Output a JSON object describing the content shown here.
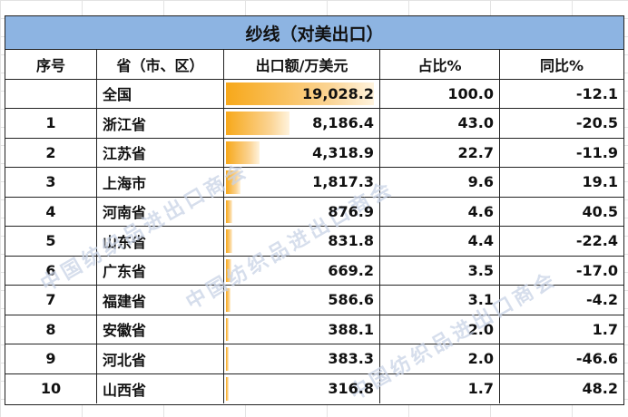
{
  "title": "纱线（对美出口）",
  "headers": {
    "index": "序号",
    "province": "省（市、区）",
    "export": "出口额/万美元",
    "share": "占比%",
    "yoy": "同比%"
  },
  "rows": [
    {
      "index": "",
      "province": "全国",
      "export": "19,028.2",
      "share": "100.0",
      "yoy": "-12.1",
      "bar": 1.0
    },
    {
      "index": "1",
      "province": "浙江省",
      "export": "8,186.4",
      "share": "43.0",
      "yoy": "-20.5",
      "bar": 0.43
    },
    {
      "index": "2",
      "province": "江苏省",
      "export": "4,318.9",
      "share": "22.7",
      "yoy": "-11.9",
      "bar": 0.227
    },
    {
      "index": "3",
      "province": "上海市",
      "export": "1,817.3",
      "share": "9.6",
      "yoy": "19.1",
      "bar": 0.096
    },
    {
      "index": "4",
      "province": "河南省",
      "export": "876.9",
      "share": "4.6",
      "yoy": "40.5",
      "bar": 0.046
    },
    {
      "index": "5",
      "province": "山东省",
      "export": "831.8",
      "share": "4.4",
      "yoy": "-22.4",
      "bar": 0.044
    },
    {
      "index": "6",
      "province": "广东省",
      "export": "669.2",
      "share": "3.5",
      "yoy": "-17.0",
      "bar": 0.035
    },
    {
      "index": "7",
      "province": "福建省",
      "export": "586.6",
      "share": "3.1",
      "yoy": "-4.2",
      "bar": 0.031
    },
    {
      "index": "8",
      "province": "安徽省",
      "export": "388.1",
      "share": "2.0",
      "yoy": "1.7",
      "bar": 0.02
    },
    {
      "index": "9",
      "province": "河北省",
      "export": "383.3",
      "share": "2.0",
      "yoy": "-46.6",
      "bar": 0.02
    },
    {
      "index": "10",
      "province": "山西省",
      "export": "316.8",
      "share": "1.7",
      "yoy": "48.2",
      "bar": 0.017
    }
  ],
  "watermark": "中国纺织品进出口商会",
  "colors": {
    "title_bg": "#8db4e2",
    "bar": "#f7a81a"
  }
}
